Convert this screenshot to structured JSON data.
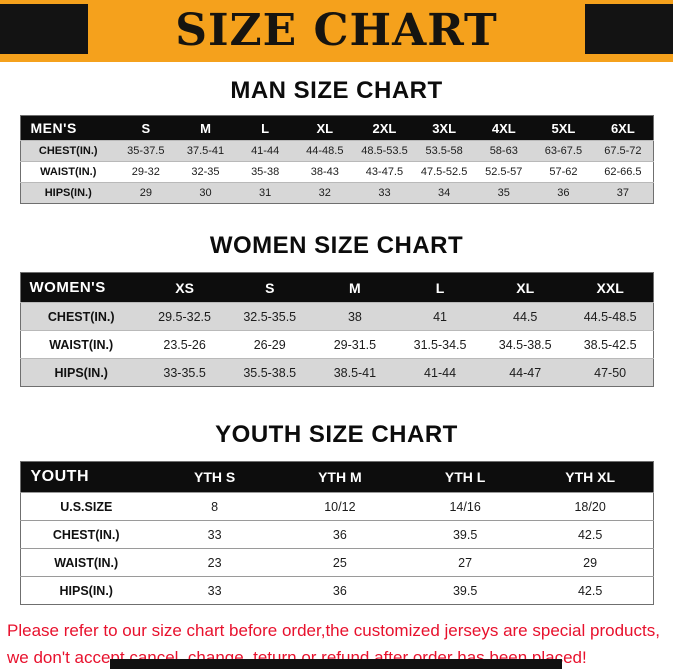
{
  "title": "SIZE CHART",
  "colors": {
    "banner_accent": "#F5A11C",
    "table_header_bg": "#0D0D0D",
    "stripe_gray": "#D7D7D7",
    "warning_text": "#E8112D"
  },
  "sections": [
    {
      "heading": "MAN SIZE CHART",
      "table": {
        "header": [
          "MEN'S",
          "S",
          "M",
          "L",
          "XL",
          "2XL",
          "3XL",
          "4XL",
          "5XL",
          "6XL"
        ],
        "rows": [
          [
            "CHEST(IN.)",
            "35-37.5",
            "37.5-41",
            "41-44",
            "44-48.5",
            "48.5-53.5",
            "53.5-58",
            "58-63",
            "63-67.5",
            "67.5-72"
          ],
          [
            "WAIST(IN.)",
            "29-32",
            "32-35",
            "35-38",
            "38-43",
            "43-47.5",
            "47.5-52.5",
            "52.5-57",
            "57-62",
            "62-66.5"
          ],
          [
            "HIPS(IN.)",
            "29",
            "30",
            "31",
            "32",
            "33",
            "34",
            "35",
            "36",
            "37"
          ]
        ]
      }
    },
    {
      "heading": "WOMEN SIZE CHART",
      "table": {
        "header": [
          "WOMEN'S",
          "XS",
          "S",
          "M",
          "L",
          "XL",
          "XXL"
        ],
        "rows": [
          [
            "CHEST(IN.)",
            "29.5-32.5",
            "32.5-35.5",
            "38",
            "41",
            "44.5",
            "44.5-48.5"
          ],
          [
            "WAIST(IN.)",
            "23.5-26",
            "26-29",
            "29-31.5",
            "31.5-34.5",
            "34.5-38.5",
            "38.5-42.5"
          ],
          [
            "HIPS(IN.)",
            "33-35.5",
            "35.5-38.5",
            "38.5-41",
            "41-44",
            "44-47",
            "47-50"
          ]
        ]
      }
    },
    {
      "heading": "YOUTH SIZE CHART",
      "table": {
        "header": [
          "YOUTH",
          "YTH S",
          "YTH M",
          "YTH L",
          "YTH XL"
        ],
        "rows": [
          [
            "U.S.SIZE",
            "8",
            "10/12",
            "14/16",
            "18/20"
          ],
          [
            "CHEST(IN.)",
            "33",
            "36",
            "39.5",
            "42.5"
          ],
          [
            "WAIST(IN.)",
            "23",
            "25",
            "27",
            "29"
          ],
          [
            "HIPS(IN.)",
            "33",
            "36",
            "39.5",
            "42.5"
          ]
        ]
      }
    }
  ],
  "footer": {
    "line1": "Please refer to our size chart before order,the customized jerseys are special products,",
    "line2": "we don't accept cancel, change, teturn or refund after order has been placed!"
  }
}
